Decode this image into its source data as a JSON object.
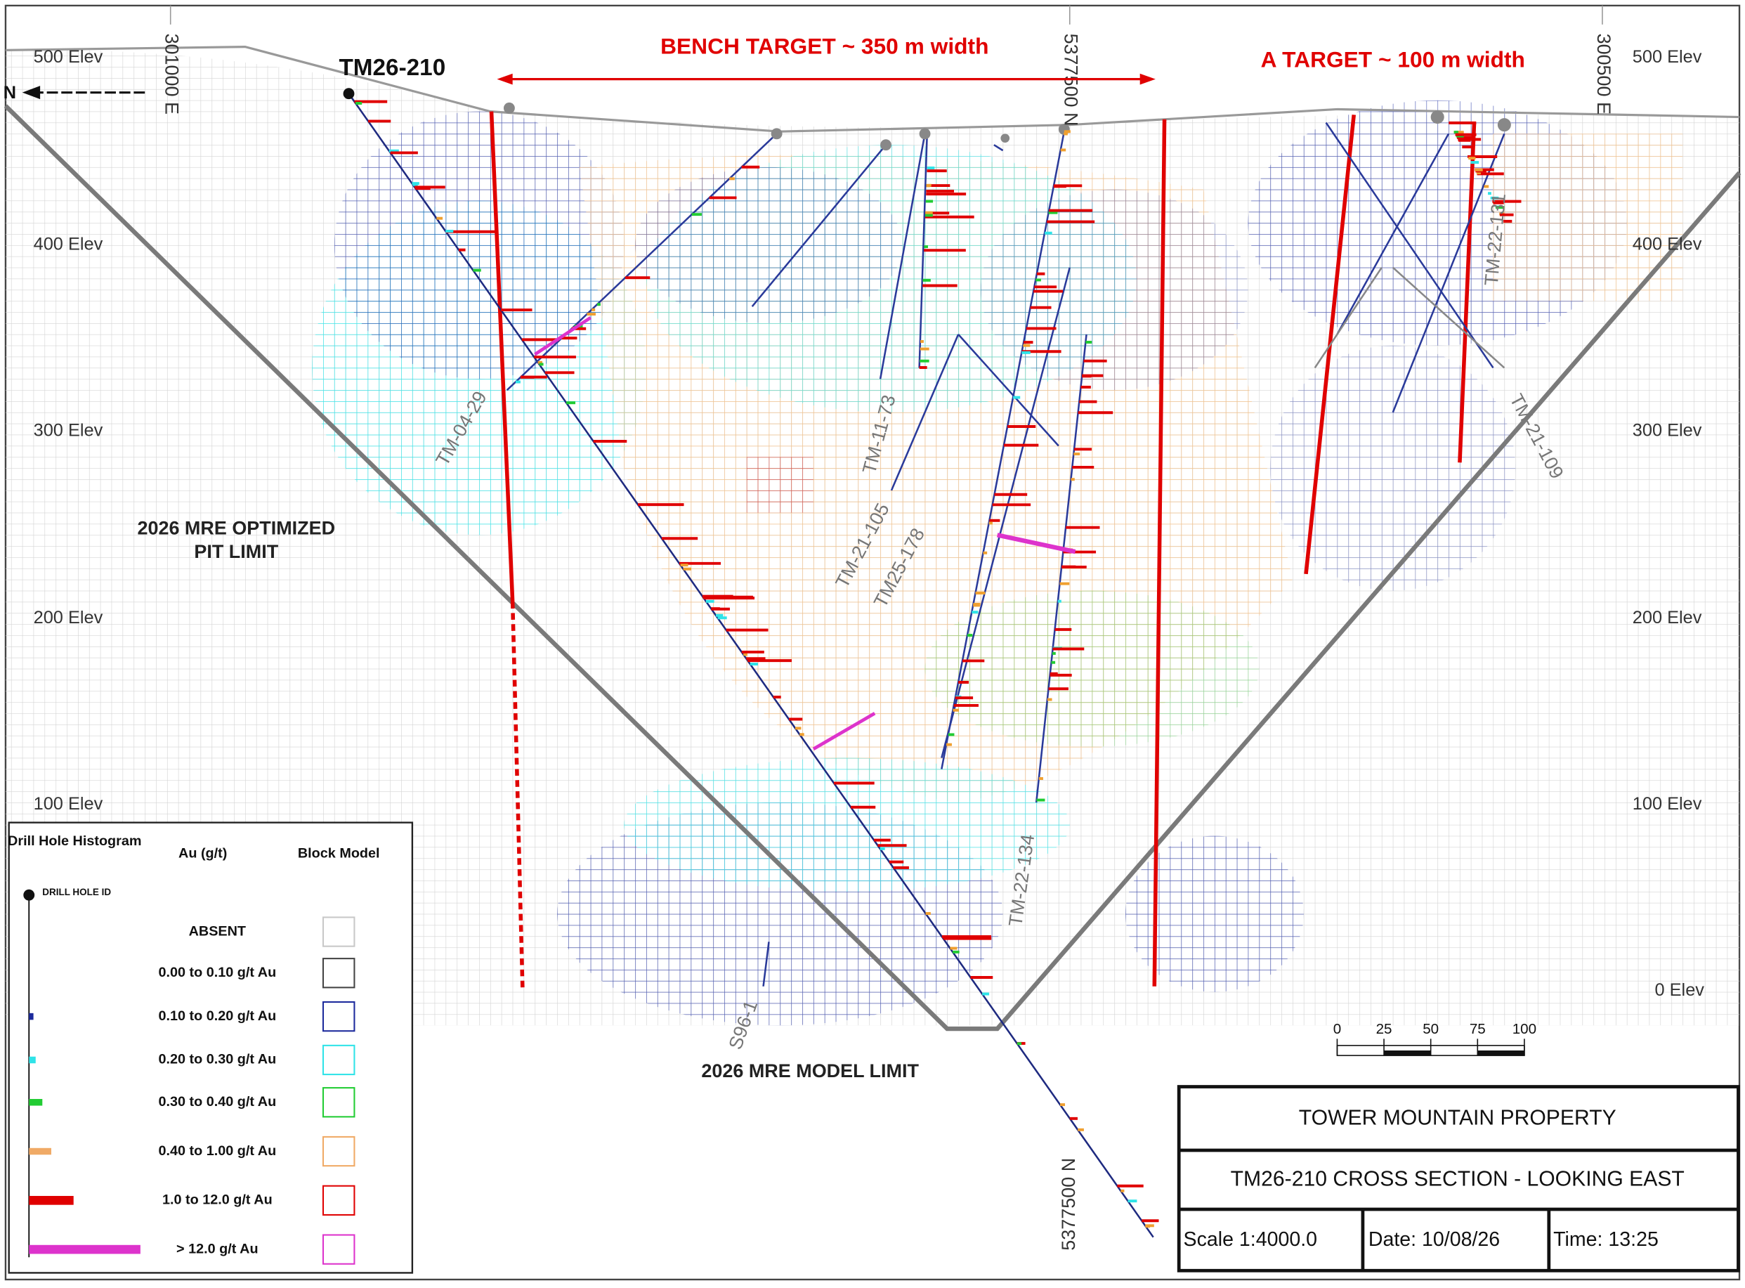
{
  "elevation_labels": {
    "left": [
      "500 Elev",
      "400 Elev",
      "300 Elev",
      "200 Elev",
      "100 Elev"
    ],
    "right": [
      "500 Elev",
      "400 Elev",
      "300 Elev",
      "200 Elev",
      "100 Elev",
      "0 Elev"
    ]
  },
  "coordinates": {
    "top_left": "301000 E",
    "top_center": "5377500 N",
    "top_right": "300500 E",
    "bottom": "5377500 N"
  },
  "north_arrow": "N",
  "targets": {
    "bench": "BENCH TARGET ~ 350 m width",
    "a": "A TARGET ~ 100 m width"
  },
  "featured_hole": "TM26-210",
  "drill_hole_labels": [
    "TM-04-29",
    "TM-11-73",
    "TM-21-105",
    "TM25-178",
    "TM-22-134",
    "S96-1",
    "TM-22-131",
    "TM-21-109"
  ],
  "pit_limit": [
    "2026 MRE OPTIMIZED",
    "PIT LIMIT"
  ],
  "model_limit": "2026 MRE MODEL LIMIT",
  "legend": {
    "headers": [
      "Drill Hole Histogram",
      "Au (g/t)",
      "Block Model"
    ],
    "collar_label": "DRILL HOLE ID",
    "rows": [
      {
        "label": "ABSENT",
        "color": "#c8c8c8"
      },
      {
        "label": "0.00 to 0.10 g/t Au",
        "color": "#444444"
      },
      {
        "label": "0.10 to 0.20 g/t Au",
        "color": "#1c2a9c"
      },
      {
        "label": "0.20 to 0.30 g/t Au",
        "color": "#2fe3e8"
      },
      {
        "label": "0.30 to 0.40 g/t Au",
        "color": "#22cc33"
      },
      {
        "label": "0.40 to 1.00 g/t Au",
        "color": "#f0aa66"
      },
      {
        "label": "1.0 to 12.0 g/t Au",
        "color": "#e00000"
      },
      {
        "label": "> 12.0 g/t Au",
        "color": "#dd33cc"
      }
    ]
  },
  "scale_bar": [
    0,
    25,
    50,
    75,
    100
  ],
  "title_block": {
    "property": "TOWER MOUNTAIN PROPERTY",
    "section": "TM26-210 CROSS SECTION - LOOKING EAST",
    "scale": "Scale 1:4000.0",
    "date": "Date: 10/08/26",
    "time": "Time: 13:25"
  }
}
